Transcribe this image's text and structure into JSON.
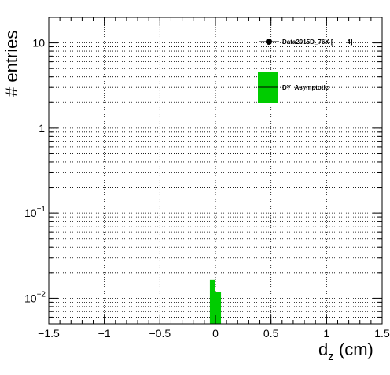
{
  "chart_data": {
    "type": "bar",
    "title": "",
    "xlabel": "d",
    "xlabel_sub": "z",
    "xlabel_unit": " (cm)",
    "ylabel": "# entries",
    "xlim": [
      -1.5,
      1.5
    ],
    "ylim": [
      0.005,
      20
    ],
    "yscale": "log",
    "grid": true,
    "x_ticks": [
      -1.5,
      -1,
      -0.5,
      0,
      0.5,
      1,
      1.5
    ],
    "x_tick_labels": [
      "−1.5",
      "−1",
      "−0.5",
      "0",
      "0.5",
      "1",
      "1.5"
    ],
    "y_ticks": [
      {
        "value": 0.01,
        "base": "10",
        "exp": "−2"
      },
      {
        "value": 0.1,
        "base": "10",
        "exp": "−1"
      },
      {
        "value": 1,
        "base": "1",
        "exp": ""
      },
      {
        "value": 10,
        "base": "10",
        "exp": ""
      }
    ],
    "series": [
      {
        "name": "DY_Asymptotic",
        "color": "#00cc00",
        "bins": [
          {
            "x0": -0.05,
            "x1": 0.0,
            "value": 0.0165
          },
          {
            "x0": 0.0,
            "x1": 0.05,
            "value": 0.0118
          }
        ]
      }
    ],
    "legend": {
      "placement": "top-right",
      "entries": [
        {
          "label": "Data2015D_76X [        4]",
          "marker": "point-errorbar",
          "color": "#000000"
        },
        {
          "label": "DY_Asymptotic",
          "marker": "box",
          "color": "#00cc00"
        }
      ]
    }
  }
}
